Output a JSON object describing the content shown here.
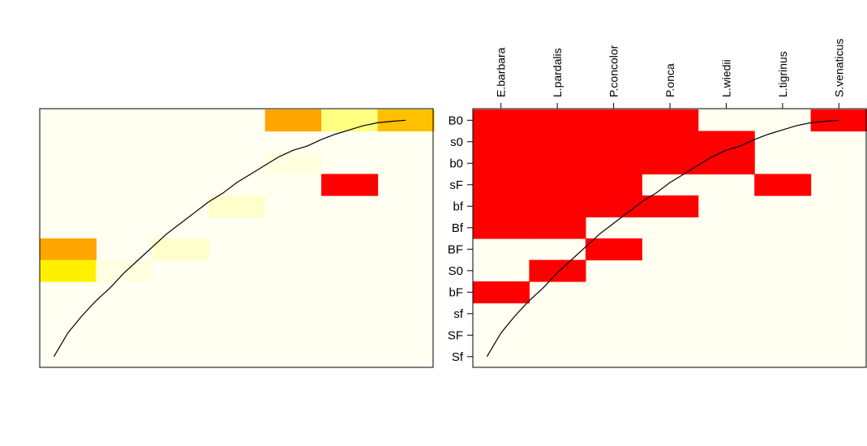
{
  "chart_data": [
    {
      "type": "heatmap",
      "title": "",
      "xlabel": "",
      "ylabel": "",
      "columns": [
        "E.barbara",
        "L.pardalis",
        "P.concolor",
        "P.onca",
        "L.wiedii",
        "L.tigrinus",
        "S.venaticus"
      ],
      "rows": [
        "B0",
        "s0",
        "b0",
        "sF",
        "bf",
        "Bf",
        "BF",
        "S0",
        "bF",
        "sf",
        "SF",
        "Sf"
      ],
      "show_column_labels": false,
      "show_row_labels": false,
      "background_color": "#FFFFF2",
      "colors": {
        "low": "#FFFFF2",
        "pale": "#FFFFCC",
        "light": "#FFFF80",
        "yellow": "#FFF000",
        "orange": "#FFA500",
        "amber": "#FFC000",
        "red": "#FF0000"
      },
      "cells": [
        [
          "white",
          "white",
          "white",
          "white",
          "orange",
          "light",
          "amber"
        ],
        [
          "white",
          "white",
          "white",
          "white",
          "white",
          "white",
          "white"
        ],
        [
          "white",
          "white",
          "white",
          "white",
          "faint",
          "white",
          "white"
        ],
        [
          "white",
          "white",
          "white",
          "white",
          "white",
          "red",
          "white"
        ],
        [
          "white",
          "white",
          "white",
          "pale",
          "white",
          "white",
          "white"
        ],
        [
          "white",
          "white",
          "white",
          "white",
          "white",
          "white",
          "white"
        ],
        [
          "orange",
          "white",
          "pale",
          "white",
          "white",
          "white",
          "white"
        ],
        [
          "yellow",
          "faint",
          "white",
          "white",
          "white",
          "white",
          "white"
        ],
        [
          "white",
          "white",
          "white",
          "white",
          "white",
          "white",
          "white"
        ],
        [
          "white",
          "white",
          "white",
          "white",
          "white",
          "white",
          "white"
        ],
        [
          "white",
          "white",
          "white",
          "white",
          "white",
          "white",
          "white"
        ],
        [
          "white",
          "white",
          "white",
          "white",
          "white",
          "white",
          "white"
        ]
      ],
      "curve": [
        [
          0.5,
          11.0
        ],
        [
          1.0,
          9.9
        ],
        [
          1.5,
          9.1
        ],
        [
          2.0,
          8.4
        ],
        [
          2.5,
          7.8
        ],
        [
          3.0,
          7.1
        ],
        [
          3.5,
          6.5
        ],
        [
          4.0,
          5.9
        ],
        [
          4.5,
          5.3
        ],
        [
          5.0,
          4.8
        ],
        [
          5.5,
          4.3
        ],
        [
          6.0,
          3.8
        ],
        [
          6.5,
          3.4
        ],
        [
          7.0,
          2.9
        ],
        [
          7.5,
          2.5
        ],
        [
          8.0,
          2.1
        ],
        [
          8.5,
          1.7
        ],
        [
          9.0,
          1.4
        ],
        [
          9.5,
          1.2
        ],
        [
          10.0,
          0.9
        ],
        [
          10.5,
          0.65
        ],
        [
          11.0,
          0.45
        ],
        [
          11.5,
          0.25
        ],
        [
          12.0,
          0.12
        ],
        [
          12.5,
          0.05
        ],
        [
          13.0,
          0.0
        ]
      ],
      "curve_color": "#000000"
    },
    {
      "type": "heatmap",
      "title": "",
      "xlabel": "",
      "ylabel": "",
      "columns": [
        "E.barbara",
        "L.pardalis",
        "P.concolor",
        "P.onca",
        "L.wiedii",
        "L.tigrinus",
        "S.venaticus"
      ],
      "rows": [
        "B0",
        "s0",
        "b0",
        "sF",
        "bf",
        "Bf",
        "BF",
        "S0",
        "bF",
        "sf",
        "SF",
        "Sf"
      ],
      "show_column_labels": true,
      "show_row_labels": true,
      "background_color": "#FFFFF2",
      "colors": {
        "present": "#FF0000",
        "absent": "#FFFFF2"
      },
      "cells": [
        [
          1,
          1,
          1,
          1,
          0,
          0,
          1
        ],
        [
          1,
          1,
          1,
          1,
          1,
          0,
          0
        ],
        [
          1,
          1,
          1,
          1,
          1,
          0,
          0
        ],
        [
          1,
          1,
          1,
          0,
          0,
          1,
          0
        ],
        [
          1,
          1,
          1,
          1,
          0,
          0,
          0
        ],
        [
          1,
          1,
          0,
          0,
          0,
          0,
          0
        ],
        [
          0,
          0,
          1,
          0,
          0,
          0,
          0
        ],
        [
          0,
          1,
          0,
          0,
          0,
          0,
          0
        ],
        [
          1,
          0,
          0,
          0,
          0,
          0,
          0
        ],
        [
          0,
          0,
          0,
          0,
          0,
          0,
          0
        ],
        [
          0,
          0,
          0,
          0,
          0,
          0,
          0
        ],
        [
          0,
          0,
          0,
          0,
          0,
          0,
          0
        ]
      ],
      "curve": [
        [
          0.5,
          11.0
        ],
        [
          1.0,
          9.9
        ],
        [
          1.5,
          9.1
        ],
        [
          2.0,
          8.4
        ],
        [
          2.5,
          7.8
        ],
        [
          3.0,
          7.1
        ],
        [
          3.5,
          6.5
        ],
        [
          4.0,
          5.9
        ],
        [
          4.5,
          5.3
        ],
        [
          5.0,
          4.8
        ],
        [
          5.5,
          4.3
        ],
        [
          6.0,
          3.8
        ],
        [
          6.5,
          3.4
        ],
        [
          7.0,
          2.9
        ],
        [
          7.5,
          2.5
        ],
        [
          8.0,
          2.1
        ],
        [
          8.5,
          1.7
        ],
        [
          9.0,
          1.4
        ],
        [
          9.5,
          1.2
        ],
        [
          10.0,
          0.9
        ],
        [
          10.5,
          0.65
        ],
        [
          11.0,
          0.45
        ],
        [
          11.5,
          0.25
        ],
        [
          12.0,
          0.12
        ],
        [
          12.5,
          0.05
        ],
        [
          13.0,
          0.0
        ]
      ],
      "curve_color": "#000000"
    }
  ]
}
